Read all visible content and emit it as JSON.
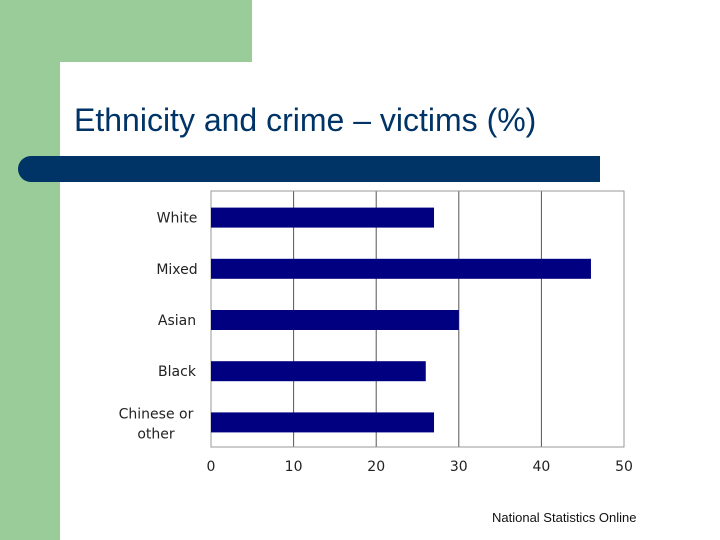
{
  "slide": {
    "title": "Ethnicity and crime – victims (%)",
    "source": "National Statistics Online"
  },
  "colors": {
    "accent_green": "#99cc99",
    "title_bar": "#003366",
    "bar_fill": "#000080"
  },
  "chart_data": {
    "type": "bar",
    "orientation": "horizontal",
    "categories": [
      "White",
      "Mixed",
      "Asian",
      "Black",
      "Chinese or other"
    ],
    "values": [
      27,
      46,
      30,
      26,
      27
    ],
    "xlim": [
      0,
      50
    ],
    "xticks": [
      "0",
      "10",
      "20",
      "30",
      "40",
      "50"
    ],
    "grid": true,
    "legend": "none"
  }
}
